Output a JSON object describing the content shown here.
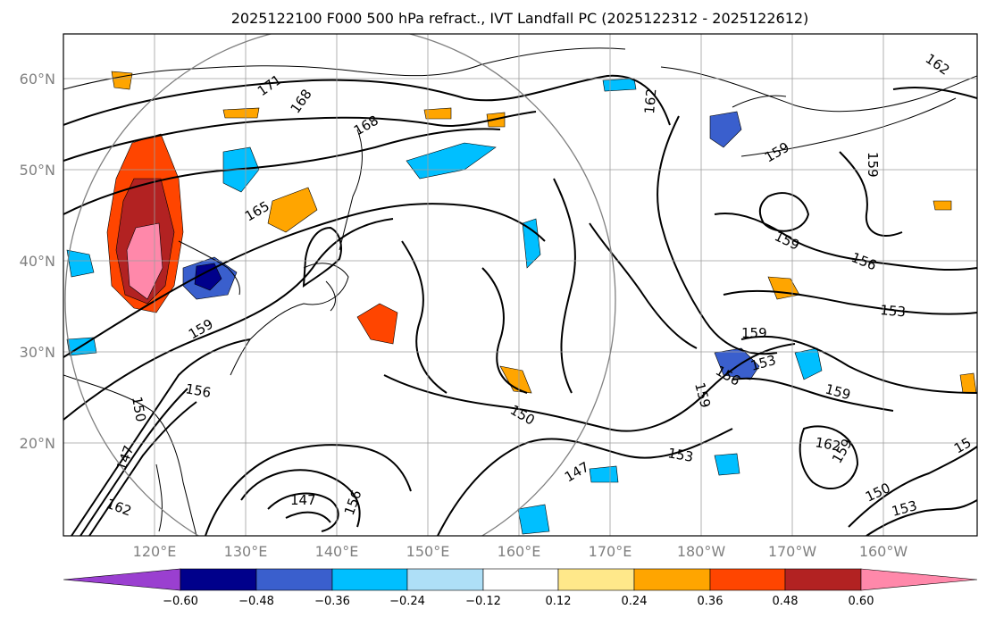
{
  "title": "2025122100 F000 500 hPa refract., IVT Landfall PC (2025122312 - 2025122612)",
  "lat_labels": [
    "60°N",
    "50°N",
    "40°N",
    "30°N",
    "20°N"
  ],
  "lon_labels": [
    "120°E",
    "130°E",
    "140°E",
    "150°E",
    "160°E",
    "170°E",
    "180°W",
    "170°W",
    "160°W"
  ],
  "colorbar": {
    "labels": [
      "−0.60",
      "−0.48",
      "−0.36",
      "−0.24",
      "−0.12",
      "0.12",
      "0.24",
      "0.36",
      "0.48",
      "0.60"
    ],
    "colors": [
      "#9a3fd0",
      "#00008b",
      "#3a5fcd",
      "#00bfff",
      "#aedff7",
      "#ffffff",
      "#ffe88a",
      "#ffa500",
      "#ff4500",
      "#b22222",
      "#ff88aa"
    ]
  },
  "contour_labels": [
    "171",
    "168",
    "168",
    "162",
    "162",
    "165",
    "159",
    "159",
    "159",
    "156",
    "153",
    "159",
    "153",
    "156",
    "159",
    "159",
    "150",
    "147",
    "153",
    "162",
    "159",
    "150",
    "153",
    "156",
    "159",
    "150",
    "147",
    "162",
    "147",
    "156",
    "15"
  ]
}
